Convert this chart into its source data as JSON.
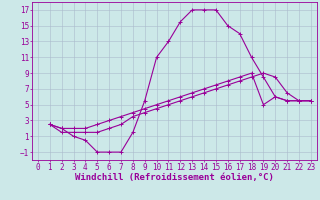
{
  "background_color": "#cce8e8",
  "line_color": "#990099",
  "grid_color": "#aabbcc",
  "xlabel": "Windchill (Refroidissement éolien,°C)",
  "xlabel_fontsize": 6.5,
  "tick_fontsize": 5.5,
  "xlim": [
    -0.5,
    23.5
  ],
  "ylim": [
    -2,
    18
  ],
  "yticks": [
    -1,
    1,
    3,
    5,
    7,
    9,
    11,
    13,
    15,
    17
  ],
  "xticks": [
    0,
    1,
    2,
    3,
    4,
    5,
    6,
    7,
    8,
    9,
    10,
    11,
    12,
    13,
    14,
    15,
    16,
    17,
    18,
    19,
    20,
    21,
    22,
    23
  ],
  "curve1_x": [
    1,
    2,
    3,
    4,
    5,
    6,
    7,
    8,
    9,
    10,
    11,
    12,
    13,
    14,
    15,
    16,
    17,
    18,
    19,
    20,
    21,
    22,
    23
  ],
  "curve1_y": [
    2.5,
    2.0,
    1.0,
    0.5,
    -1.0,
    -1.0,
    -1.0,
    1.5,
    5.5,
    11.0,
    13.0,
    15.5,
    17.0,
    17.0,
    17.0,
    15.0,
    14.0,
    11.0,
    8.5,
    6.0,
    5.5,
    5.5,
    5.5
  ],
  "curve2_x": [
    1,
    2,
    3,
    4,
    5,
    6,
    7,
    8,
    9,
    10,
    11,
    12,
    13,
    14,
    15,
    16,
    17,
    18,
    19,
    20,
    21,
    22,
    23
  ],
  "curve2_y": [
    2.5,
    2.0,
    2.0,
    2.0,
    2.5,
    3.0,
    3.5,
    4.0,
    4.5,
    5.0,
    5.5,
    6.0,
    6.5,
    7.0,
    7.5,
    8.0,
    8.5,
    9.0,
    5.0,
    6.0,
    5.5,
    5.5,
    5.5
  ],
  "curve3_x": [
    1,
    2,
    3,
    4,
    5,
    6,
    7,
    8,
    9,
    10,
    11,
    12,
    13,
    14,
    15,
    16,
    17,
    18,
    19,
    20,
    21,
    22,
    23
  ],
  "curve3_y": [
    2.5,
    1.5,
    1.5,
    1.5,
    1.5,
    2.0,
    2.5,
    3.5,
    4.0,
    4.5,
    5.0,
    5.5,
    6.0,
    6.5,
    7.0,
    7.5,
    8.0,
    8.5,
    9.0,
    8.5,
    6.5,
    5.5,
    5.5
  ]
}
